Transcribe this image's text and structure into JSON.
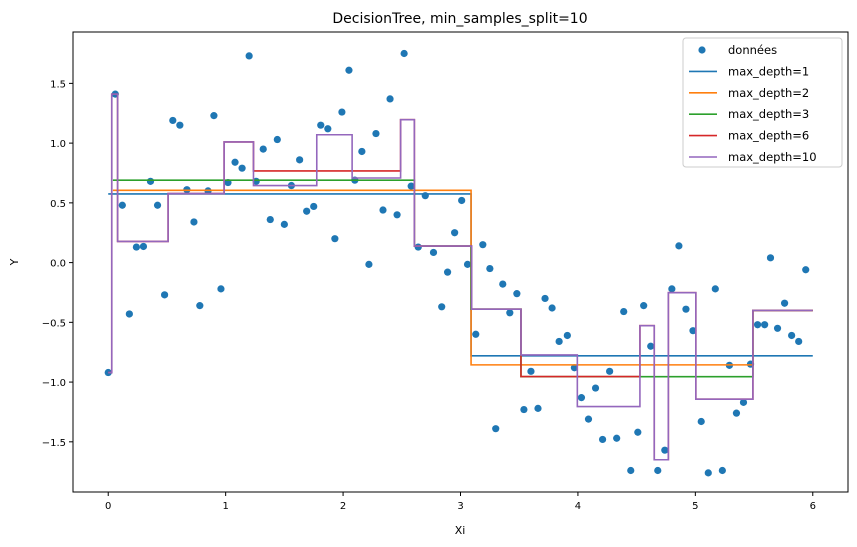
{
  "chart_data": {
    "type": "line",
    "title": "DecisionTree, min_samples_split=10",
    "xlabel": "Xi",
    "ylabel": "Y",
    "xlim": [
      -0.3,
      6.3
    ],
    "ylim": [
      -1.92,
      1.93
    ],
    "xticks": [
      0,
      1,
      2,
      3,
      4,
      5,
      6
    ],
    "xtick_labels": [
      "0",
      "1",
      "2",
      "3",
      "4",
      "5",
      "6"
    ],
    "yticks": [
      -1.5,
      -1.0,
      -0.5,
      0.0,
      0.5,
      1.0,
      1.5
    ],
    "ytick_labels": [
      "−1.5",
      "−1.0",
      "−0.5",
      "0.0",
      "0.5",
      "1.0",
      "1.5"
    ],
    "grid": false,
    "legend_position": "top-right",
    "scatter": {
      "name": "données",
      "color": "#1f77b4",
      "points": [
        [
          0.0,
          -0.92
        ],
        [
          0.06,
          1.41
        ],
        [
          0.12,
          0.48
        ],
        [
          0.18,
          -0.43
        ],
        [
          0.24,
          0.13
        ],
        [
          0.3,
          0.135
        ],
        [
          0.36,
          0.68
        ],
        [
          0.42,
          0.48
        ],
        [
          0.48,
          -0.27
        ],
        [
          0.55,
          1.19
        ],
        [
          0.61,
          1.15
        ],
        [
          0.67,
          0.61
        ],
        [
          0.73,
          0.34
        ],
        [
          0.78,
          -0.36
        ],
        [
          0.85,
          0.6
        ],
        [
          0.9,
          1.23
        ],
        [
          0.96,
          -0.22
        ],
        [
          1.02,
          0.67
        ],
        [
          1.08,
          0.84
        ],
        [
          1.14,
          0.79
        ],
        [
          1.2,
          1.73
        ],
        [
          1.26,
          0.68
        ],
        [
          1.32,
          0.95
        ],
        [
          1.38,
          0.36
        ],
        [
          1.44,
          1.03
        ],
        [
          1.5,
          0.32
        ],
        [
          1.56,
          0.645
        ],
        [
          1.63,
          0.86
        ],
        [
          1.69,
          0.43
        ],
        [
          1.75,
          0.47
        ],
        [
          1.81,
          1.15
        ],
        [
          1.87,
          1.12
        ],
        [
          1.93,
          0.2
        ],
        [
          1.99,
          1.26
        ],
        [
          2.05,
          1.61
        ],
        [
          2.1,
          0.69
        ],
        [
          2.16,
          0.93
        ],
        [
          2.22,
          -0.015
        ],
        [
          2.28,
          1.08
        ],
        [
          2.34,
          0.44
        ],
        [
          2.4,
          1.37
        ],
        [
          2.46,
          0.4
        ],
        [
          2.52,
          1.75
        ],
        [
          2.58,
          0.64
        ],
        [
          2.64,
          0.13
        ],
        [
          2.7,
          0.56
        ],
        [
          2.77,
          0.085
        ],
        [
          2.84,
          -0.37
        ],
        [
          2.89,
          -0.08
        ],
        [
          2.95,
          0.25
        ],
        [
          3.01,
          0.52
        ],
        [
          3.06,
          -0.015
        ],
        [
          3.13,
          -0.6
        ],
        [
          3.19,
          0.15
        ],
        [
          3.25,
          -0.05
        ],
        [
          3.3,
          -1.39
        ],
        [
          3.36,
          -0.18
        ],
        [
          3.42,
          -0.42
        ],
        [
          3.48,
          -0.26
        ],
        [
          3.54,
          -1.23
        ],
        [
          3.6,
          -0.91
        ],
        [
          3.66,
          -1.22
        ],
        [
          3.72,
          -0.3
        ],
        [
          3.78,
          -0.38
        ],
        [
          3.84,
          -0.66
        ],
        [
          3.91,
          -0.61
        ],
        [
          3.97,
          -0.88
        ],
        [
          4.03,
          -1.13
        ],
        [
          4.09,
          -1.31
        ],
        [
          4.15,
          -1.05
        ],
        [
          4.21,
          -1.48
        ],
        [
          4.27,
          -0.91
        ],
        [
          4.33,
          -1.47
        ],
        [
          4.39,
          -0.41
        ],
        [
          4.45,
          -1.74
        ],
        [
          4.51,
          -1.42
        ],
        [
          4.56,
          -0.36
        ],
        [
          4.62,
          -0.7
        ],
        [
          4.68,
          -1.74
        ],
        [
          4.74,
          -1.57
        ],
        [
          4.8,
          -0.22
        ],
        [
          4.86,
          0.14
        ],
        [
          4.92,
          -0.39
        ],
        [
          4.98,
          -0.57
        ],
        [
          5.05,
          -1.33
        ],
        [
          5.11,
          -1.76
        ],
        [
          5.17,
          -0.22
        ],
        [
          5.23,
          -1.74
        ],
        [
          5.29,
          -0.86
        ],
        [
          5.35,
          -1.26
        ],
        [
          5.41,
          -1.17
        ],
        [
          5.47,
          -0.85
        ],
        [
          5.53,
          -0.52
        ],
        [
          5.59,
          -0.52
        ],
        [
          5.64,
          0.04
        ],
        [
          5.7,
          -0.55
        ],
        [
          5.76,
          -0.34
        ],
        [
          5.82,
          -0.61
        ],
        [
          5.88,
          -0.66
        ],
        [
          5.94,
          -0.06
        ]
      ]
    },
    "series": [
      {
        "name": "max_depth=1",
        "color": "#1f77b4",
        "steps": [
          [
            0.0,
            0.575
          ],
          [
            3.09,
            -0.78
          ],
          [
            6.0,
            -0.78
          ]
        ]
      },
      {
        "name": "max_depth=2",
        "color": "#ff7f0e",
        "steps": [
          [
            0.04,
            0.605
          ],
          [
            3.09,
            -0.856
          ],
          [
            5.49,
            -0.4
          ],
          [
            6.0,
            -0.4
          ]
        ]
      },
      {
        "name": "max_depth=3",
        "color": "#2ca02c",
        "steps": [
          [
            0.04,
            0.69
          ],
          [
            2.607,
            0.138
          ],
          [
            3.09,
            -0.39
          ],
          [
            3.515,
            -0.955
          ],
          [
            5.49,
            -0.4
          ],
          [
            6.0,
            -0.4
          ]
        ]
      },
      {
        "name": "max_depth=6",
        "color": "#d62728",
        "steps": [
          [
            0.0,
            -0.92
          ],
          [
            0.03,
            1.41
          ],
          [
            0.08,
            0.177
          ],
          [
            0.51,
            0.578
          ],
          [
            0.987,
            1.01
          ],
          [
            1.237,
            0.767
          ],
          [
            2.49,
            1.196
          ],
          [
            2.607,
            0.138
          ],
          [
            3.095,
            -0.39
          ],
          [
            3.515,
            -0.954
          ],
          [
            4.528,
            -0.528
          ],
          [
            4.65,
            -1.65
          ],
          [
            4.77,
            -0.252
          ],
          [
            5.004,
            -1.143
          ],
          [
            5.49,
            -0.4
          ],
          [
            6.0,
            -0.4
          ]
        ]
      },
      {
        "name": "max_depth=10",
        "color": "#9467bd",
        "steps": [
          [
            0.0,
            -0.92
          ],
          [
            0.03,
            1.41
          ],
          [
            0.08,
            0.177
          ],
          [
            0.51,
            0.578
          ],
          [
            0.987,
            1.01
          ],
          [
            1.237,
            0.645
          ],
          [
            1.776,
            1.07
          ],
          [
            2.077,
            0.708
          ],
          [
            2.49,
            1.196
          ],
          [
            2.607,
            0.138
          ],
          [
            3.095,
            -0.39
          ],
          [
            3.515,
            -0.773
          ],
          [
            3.995,
            -1.205
          ],
          [
            4.528,
            -0.528
          ],
          [
            4.65,
            -1.65
          ],
          [
            4.77,
            -0.252
          ],
          [
            5.004,
            -1.143
          ],
          [
            5.49,
            -0.4
          ],
          [
            6.0,
            -0.4
          ]
        ]
      }
    ]
  }
}
